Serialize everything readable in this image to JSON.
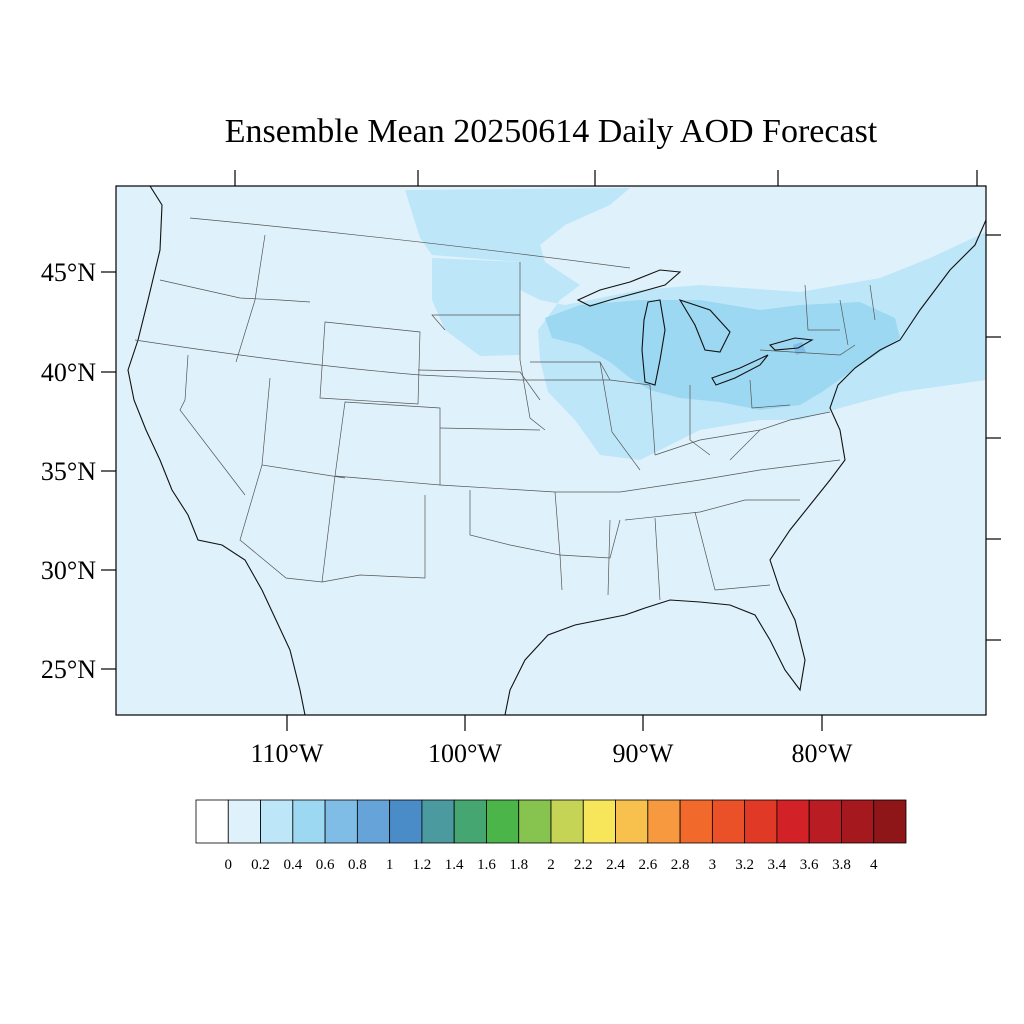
{
  "title": "Ensemble Mean 20250614 Daily AOD Forecast",
  "map": {
    "projection": "lambert-conformal",
    "region": "Contiguous United States",
    "lat_labels": [
      "45°N",
      "40°N",
      "35°N",
      "30°N",
      "25°N"
    ],
    "lon_labels": [
      "110°W",
      "100°W",
      "90°W",
      "80°W"
    ],
    "background_class": "0.2-0.4",
    "features": [
      {
        "name": "enhanced AOD band northern plains to Great Lakes",
        "class": "0.2-0.4"
      },
      {
        "name": "enhanced AOD band Ohio valley to New England",
        "class": "0.4-0.6"
      }
    ]
  },
  "colorbar": {
    "labels": [
      "0",
      "0.2",
      "0.4",
      "0.6",
      "0.8",
      "1",
      "1.2",
      "1.4",
      "1.6",
      "1.8",
      "2",
      "2.2",
      "2.4",
      "2.6",
      "2.8",
      "3",
      "3.2",
      "3.4",
      "3.6",
      "3.8",
      "4"
    ],
    "colors": [
      "#ffffff",
      "#dff2fb",
      "#bde6f8",
      "#9dd8f3",
      "#80bde6",
      "#66a3d8",
      "#4a8cc7",
      "#4a9a9f",
      "#46a672",
      "#4cb54a",
      "#86c34f",
      "#c5d455",
      "#f7e65a",
      "#f8c04c",
      "#f6993f",
      "#f26a2b",
      "#ea5128",
      "#e03a26",
      "#d32128",
      "#b91c23",
      "#a4181e",
      "#8e1619"
    ]
  }
}
